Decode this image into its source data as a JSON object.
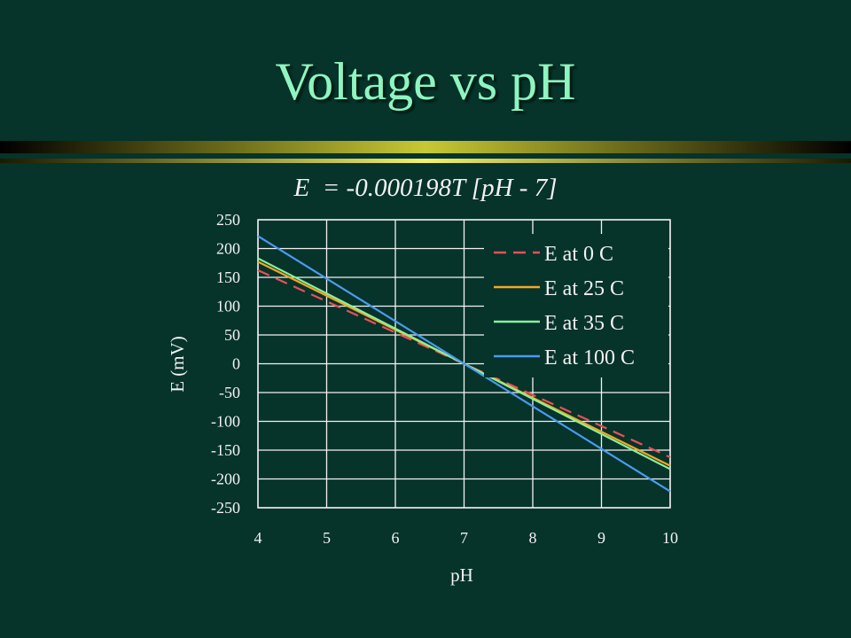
{
  "slide": {
    "title": "Voltage vs pH",
    "equation": "E  = -0.000198T [pH - 7]"
  },
  "colors": {
    "background": "#06332a",
    "title": "#8ff5c0",
    "divider_gradient": [
      "#000000",
      "#c8c834",
      "#eded5c"
    ],
    "gridline": "#f2f2f2"
  },
  "chart_data": {
    "type": "line",
    "xlabel": "pH",
    "ylabel": "E (mV)",
    "xlim": [
      4,
      10
    ],
    "ylim": [
      -250,
      250
    ],
    "xticks": [
      4,
      5,
      6,
      7,
      8,
      9,
      10
    ],
    "yticks": [
      250,
      200,
      150,
      100,
      50,
      0,
      -50,
      -100,
      -150,
      -200,
      -250
    ],
    "grid": true,
    "legend_position": "top-right",
    "x": [
      4,
      5,
      6,
      7,
      8,
      9,
      10
    ],
    "series": [
      {
        "name": "E at 0 C",
        "color": "#e8505a",
        "dash": true,
        "values": [
          162.3,
          108.2,
          54.1,
          0,
          -54.1,
          -108.2,
          -162.3
        ]
      },
      {
        "name": "E at 25 C",
        "color": "#f5a623",
        "dash": false,
        "values": [
          177.1,
          118.1,
          59.0,
          0,
          -59.0,
          -118.1,
          -177.1
        ]
      },
      {
        "name": "E at 35 C",
        "color": "#8af09a",
        "dash": false,
        "values": [
          183.0,
          122.0,
          61.0,
          0,
          -61.0,
          -122.0,
          -183.0
        ]
      },
      {
        "name": "E at 100 C",
        "color": "#4a9af0",
        "dash": false,
        "values": [
          221.6,
          147.8,
          73.9,
          0,
          -73.9,
          -147.8,
          -221.6
        ]
      }
    ]
  }
}
